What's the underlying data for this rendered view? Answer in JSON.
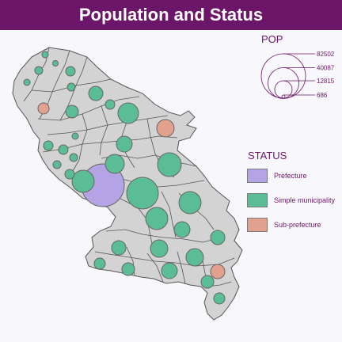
{
  "title": "Population and Status",
  "legend": {
    "pop_title": "POP",
    "pop_values": [
      "82502",
      "40087",
      "12815",
      "686"
    ],
    "status_title": "STATUS",
    "status_items": [
      {
        "label": "Prefecture",
        "color": "#b4a4e6"
      },
      {
        "label": "Simple municipality",
        "color": "#5bbd95"
      },
      {
        "label": "Sub-prefecture",
        "color": "#e2a18e"
      }
    ]
  },
  "colors": {
    "header": "#6b1668",
    "land": "#d3d3d3",
    "border": "#555555",
    "background": "#f8f7fb"
  }
}
